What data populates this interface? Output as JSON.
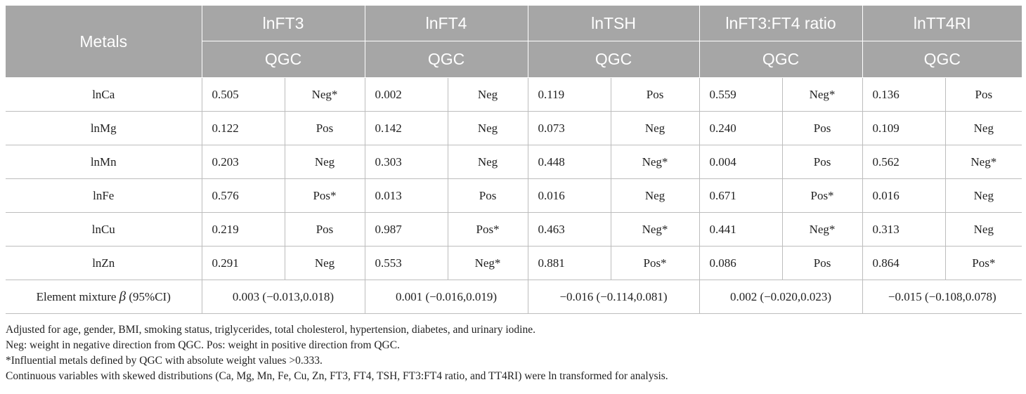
{
  "header": {
    "metals": "Metals",
    "cols": [
      "lnFT3",
      "lnFT4",
      "lnTSH",
      "lnFT3:FT4 ratio",
      "lnTT4RI"
    ],
    "sub": "QGC"
  },
  "rows": [
    {
      "metal": "lnCa",
      "cells": [
        [
          "0.505",
          "Neg*"
        ],
        [
          "0.002",
          "Neg"
        ],
        [
          "0.119",
          "Pos"
        ],
        [
          "0.559",
          "Neg*"
        ],
        [
          "0.136",
          "Pos"
        ]
      ]
    },
    {
      "metal": "lnMg",
      "cells": [
        [
          "0.122",
          "Pos"
        ],
        [
          "0.142",
          "Neg"
        ],
        [
          "0.073",
          "Neg"
        ],
        [
          "0.240",
          "Pos"
        ],
        [
          "0.109",
          "Neg"
        ]
      ]
    },
    {
      "metal": "lnMn",
      "cells": [
        [
          "0.203",
          "Neg"
        ],
        [
          "0.303",
          "Neg"
        ],
        [
          "0.448",
          "Neg*"
        ],
        [
          "0.004",
          "Pos"
        ],
        [
          "0.562",
          "Neg*"
        ]
      ]
    },
    {
      "metal": "lnFe",
      "cells": [
        [
          "0.576",
          "Pos*"
        ],
        [
          "0.013",
          "Pos"
        ],
        [
          "0.016",
          "Neg"
        ],
        [
          "0.671",
          "Pos*"
        ],
        [
          "0.016",
          "Neg"
        ]
      ]
    },
    {
      "metal": "lnCu",
      "cells": [
        [
          "0.219",
          "Pos"
        ],
        [
          "0.987",
          "Pos*"
        ],
        [
          "0.463",
          "Neg*"
        ],
        [
          "0.441",
          "Neg*"
        ],
        [
          "0.313",
          "Neg"
        ]
      ]
    },
    {
      "metal": "lnZn",
      "cells": [
        [
          "0.291",
          "Neg"
        ],
        [
          "0.553",
          "Neg*"
        ],
        [
          "0.881",
          "Pos*"
        ],
        [
          "0.086",
          "Pos"
        ],
        [
          "0.864",
          "Pos*"
        ]
      ]
    }
  ],
  "mixture": {
    "label_pre": "Element mixture ",
    "label_beta": "β",
    "label_post": " (95%CI)",
    "values": [
      "0.003 (−0.013,0.018)",
      "0.001 (−0.016,0.019)",
      "−0.016 (−0.114,0.081)",
      "0.002 (−0.020,0.023)",
      "−0.015 (−0.108,0.078)"
    ]
  },
  "notes": [
    "Adjusted for age, gender, BMI, smoking status, triglycerides, total cholesterol, hypertension, diabetes, and urinary iodine.",
    "Neg: weight in negative direction from QGC. Pos: weight in positive direction from QGC.",
    "*Influential metals defined by QGC with absolute weight values >0.333.",
    "Continuous variables with skewed distributions (Ca, Mg, Mn, Fe, Cu, Zn, FT3, FT4, TSH, FT3:FT4 ratio, and TT4RI) were ln transformed for analysis."
  ],
  "colors": {
    "header_bg": "#a6a6a6",
    "header_text": "#ffffff",
    "grid": "#bdbdbd"
  }
}
